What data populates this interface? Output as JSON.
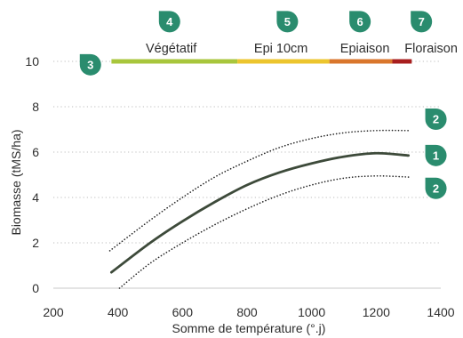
{
  "chart_data": {
    "type": "line",
    "xlabel": "Somme de température (°.j)",
    "ylabel": "Biomasse (tMS/ha)",
    "xlim": [
      200,
      1400
    ],
    "ylim": [
      0,
      10
    ],
    "xticks": [
      "200",
      "400",
      "600",
      "800",
      "1000",
      "1200",
      "1400"
    ],
    "yticks": [
      "0",
      "2",
      "4",
      "6",
      "8",
      "10"
    ],
    "series": [
      {
        "key": "mean",
        "style": "solid",
        "color": "#3d4a3a",
        "points": [
          [
            380,
            0.7
          ],
          [
            500,
            2.0
          ],
          [
            600,
            2.95
          ],
          [
            700,
            3.8
          ],
          [
            800,
            4.55
          ],
          [
            900,
            5.1
          ],
          [
            1000,
            5.5
          ],
          [
            1100,
            5.8
          ],
          [
            1200,
            5.95
          ],
          [
            1300,
            5.85
          ]
        ]
      },
      {
        "key": "upper",
        "style": "dotted",
        "color": "#222222",
        "points": [
          [
            375,
            1.65
          ],
          [
            500,
            3.0
          ],
          [
            600,
            4.0
          ],
          [
            700,
            4.9
          ],
          [
            800,
            5.6
          ],
          [
            900,
            6.2
          ],
          [
            1000,
            6.6
          ],
          [
            1100,
            6.85
          ],
          [
            1200,
            6.95
          ],
          [
            1300,
            6.95
          ]
        ]
      },
      {
        "key": "lower",
        "style": "dotted",
        "color": "#222222",
        "points": [
          [
            405,
            0.0
          ],
          [
            500,
            1.1
          ],
          [
            600,
            2.0
          ],
          [
            700,
            2.8
          ],
          [
            800,
            3.5
          ],
          [
            900,
            4.1
          ],
          [
            1000,
            4.55
          ],
          [
            1100,
            4.85
          ],
          [
            1200,
            4.95
          ],
          [
            1300,
            4.9
          ]
        ]
      }
    ],
    "stage_bar": {
      "y": 10,
      "segments": [
        {
          "from": 380,
          "to": 770,
          "color": "#a8c63c"
        },
        {
          "from": 770,
          "to": 1055,
          "color": "#ecc52e"
        },
        {
          "from": 1055,
          "to": 1250,
          "color": "#d9762c"
        },
        {
          "from": 1250,
          "to": 1310,
          "color": "#a81e1e"
        }
      ]
    },
    "stage_labels": [
      {
        "text": "Végétatif",
        "x": 565
      },
      {
        "text": "Epi 10cm",
        "x": 905
      },
      {
        "text": "Epiaison",
        "x": 1165
      },
      {
        "text": "Floraison",
        "x": 1370
      }
    ],
    "badges": [
      {
        "num": "1",
        "x": 1385,
        "y": 5.85
      },
      {
        "num": "2",
        "x": 1385,
        "y": 7.45
      },
      {
        "num": "2",
        "x": 1385,
        "y": 4.4
      },
      {
        "num": "3",
        "x": 315,
        "y": 9.85
      },
      {
        "num": "4",
        "x": 560,
        "y": 11.75
      },
      {
        "num": "5",
        "x": 925,
        "y": 11.75
      },
      {
        "num": "6",
        "x": 1150,
        "y": 11.75
      },
      {
        "num": "7",
        "x": 1340,
        "y": 11.75
      }
    ],
    "badge_color": "#2a8c6e",
    "grid": "horizontal dotted"
  }
}
